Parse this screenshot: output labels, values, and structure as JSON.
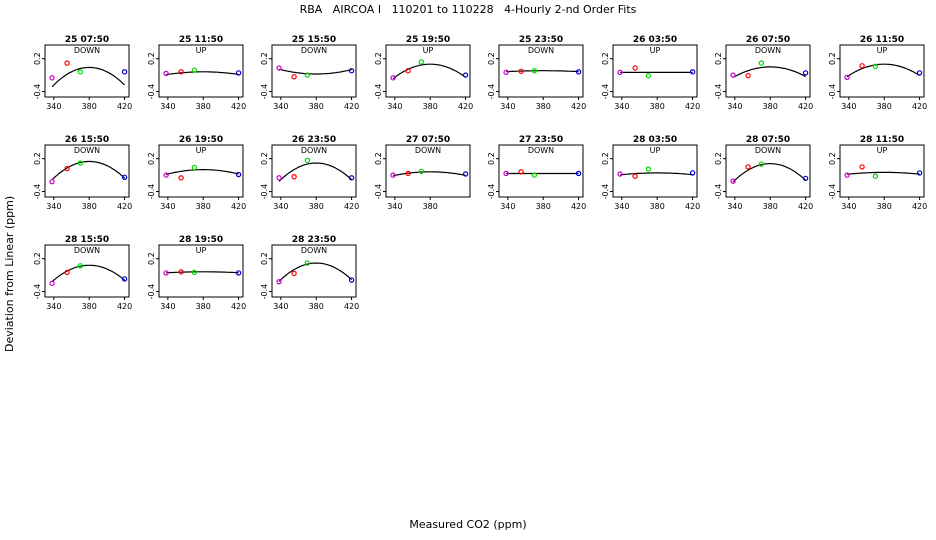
{
  "figure": {
    "title": "RBA   AIRCOA I   110201 to 110228   4-Hourly 2-nd Order Fits",
    "xlabel": "Measured CO2 (ppm)",
    "ylabel": "Deviation from Linear (ppm)"
  },
  "colors": {
    "curve": "#000000",
    "std1": "#cc00cc",
    "std2": "#ff0000",
    "std3": "#00dd00",
    "std4": "#0000cc"
  },
  "chart_data": {
    "type": "scatter",
    "xlim": [
      330,
      425
    ],
    "ylim": [
      -0.5,
      0.45
    ],
    "xticks": [
      "340",
      "380",
      "420"
    ],
    "yticks": [
      "0.2",
      "-0.4"
    ],
    "panels": [
      {
        "title": "25 07:50",
        "direction": "DOWN",
        "points": [
          [
            338,
            -0.15
          ],
          [
            355,
            0.12
          ],
          [
            370,
            -0.04
          ],
          [
            420,
            -0.04
          ]
        ],
        "fit": [
          -0.0002,
          0.04
        ],
        "xticks": [
          "340",
          "380",
          "420"
        ]
      },
      {
        "title": "25 11:50",
        "direction": "UP",
        "points": [
          [
            338,
            -0.07
          ],
          [
            355,
            -0.04
          ],
          [
            370,
            -0.01
          ],
          [
            420,
            -0.06
          ]
        ],
        "fit": [
          -3e-05,
          -0.04
        ],
        "xticks": [
          "340",
          "380",
          "420"
        ]
      },
      {
        "title": "25 15:50",
        "direction": "DOWN",
        "points": [
          [
            338,
            0.03
          ],
          [
            355,
            -0.13
          ],
          [
            370,
            -0.1
          ],
          [
            420,
            -0.02
          ]
        ],
        "fit": [
          5e-05,
          -0.08
        ],
        "xticks": [
          "340",
          "380",
          "420"
        ]
      },
      {
        "title": "25 19:50",
        "direction": "UP",
        "points": [
          [
            338,
            -0.15
          ],
          [
            355,
            -0.02
          ],
          [
            370,
            0.14
          ],
          [
            420,
            -0.1
          ]
        ],
        "fit": [
          -0.00015,
          0.1
        ],
        "xticks": [
          "340",
          "380",
          "420"
        ]
      },
      {
        "title": "25 23:50",
        "direction": "DOWN",
        "points": [
          [
            338,
            -0.05
          ],
          [
            355,
            -0.03
          ],
          [
            370,
            -0.02
          ],
          [
            420,
            -0.04
          ]
        ],
        "fit": [
          -1e-05,
          -0.02
        ],
        "xticks": [
          "340",
          "380",
          "420"
        ]
      },
      {
        "title": "26 03:50",
        "direction": "UP",
        "points": [
          [
            338,
            -0.05
          ],
          [
            355,
            0.03
          ],
          [
            370,
            -0.11
          ],
          [
            420,
            -0.04
          ]
        ],
        "fit": [
          0,
          -0.05
        ],
        "xticks": [
          "340",
          "380",
          "420"
        ]
      },
      {
        "title": "26 07:50",
        "direction": "DOWN",
        "points": [
          [
            338,
            -0.1
          ],
          [
            355,
            -0.11
          ],
          [
            370,
            0.12
          ],
          [
            420,
            -0.06
          ]
        ],
        "fit": [
          -0.00011,
          0.05
        ],
        "xticks": [
          "340",
          "380",
          "420"
        ]
      },
      {
        "title": "26 11:50",
        "direction": "UP",
        "points": [
          [
            338,
            -0.14
          ],
          [
            355,
            0.07
          ],
          [
            370,
            0.06
          ],
          [
            420,
            -0.06
          ]
        ],
        "fit": [
          -0.00013,
          0.1
        ],
        "xticks": [
          "340",
          "380",
          "420"
        ]
      },
      {
        "title": "26 15:50",
        "direction": "DOWN",
        "points": [
          [
            338,
            -0.22
          ],
          [
            355,
            0.02
          ],
          [
            370,
            0.12
          ],
          [
            420,
            -0.14
          ]
        ],
        "fit": [
          -0.00019,
          0.15
        ],
        "xticks": [
          "340",
          "380",
          "420"
        ]
      },
      {
        "title": "26 19:50",
        "direction": "UP",
        "points": [
          [
            338,
            -0.1
          ],
          [
            355,
            -0.15
          ],
          [
            370,
            0.04
          ],
          [
            420,
            -0.09
          ]
        ],
        "fit": [
          -5e-05,
          0.0
        ],
        "xticks": [
          "340",
          "380",
          "420"
        ]
      },
      {
        "title": "26 23:50",
        "direction": "DOWN",
        "points": [
          [
            338,
            -0.15
          ],
          [
            355,
            -0.13
          ],
          [
            370,
            0.17
          ],
          [
            420,
            -0.15
          ]
        ],
        "fit": [
          -0.00019,
          0.12
        ],
        "xticks": [
          "340",
          "380",
          "420"
        ]
      },
      {
        "title": "27 07:50",
        "direction": "DOWN",
        "points": [
          [
            338,
            -0.1
          ],
          [
            355,
            -0.07
          ],
          [
            370,
            -0.03
          ],
          [
            420,
            -0.08
          ]
        ],
        "fit": [
          -4e-05,
          -0.04
        ],
        "xticks": [
          "340",
          "380"
        ]
      },
      {
        "title": "27 23:50",
        "direction": "DOWN",
        "points": [
          [
            338,
            -0.07
          ],
          [
            355,
            -0.04
          ],
          [
            370,
            -0.1
          ],
          [
            420,
            -0.07
          ]
        ],
        "fit": [
          0,
          -0.07
        ],
        "xticks": [
          "340",
          "380",
          "420"
        ]
      },
      {
        "title": "28 03:50",
        "direction": "UP",
        "points": [
          [
            338,
            -0.08
          ],
          [
            355,
            -0.12
          ],
          [
            370,
            0.01
          ],
          [
            420,
            -0.06
          ]
        ],
        "fit": [
          -2e-05,
          -0.06
        ],
        "xticks": [
          "340",
          "380",
          "420"
        ]
      },
      {
        "title": "28 07:50",
        "direction": "DOWN",
        "points": [
          [
            338,
            -0.21
          ],
          [
            355,
            0.05
          ],
          [
            370,
            0.1
          ],
          [
            420,
            -0.16
          ]
        ],
        "fit": [
          -0.00019,
          0.11
        ],
        "xticks": [
          "340",
          "380",
          "420"
        ]
      },
      {
        "title": "28 11:50",
        "direction": "UP",
        "points": [
          [
            338,
            -0.1
          ],
          [
            355,
            0.05
          ],
          [
            370,
            -0.12
          ],
          [
            420,
            -0.06
          ]
        ],
        "fit": [
          -2e-05,
          -0.05
        ],
        "xticks": [
          "340",
          "380",
          "420"
        ]
      },
      {
        "title": "28 15:50",
        "direction": "DOWN",
        "points": [
          [
            338,
            -0.25
          ],
          [
            355,
            -0.05
          ],
          [
            370,
            0.07
          ],
          [
            420,
            -0.17
          ]
        ],
        "fit": [
          -0.00017,
          0.08
        ],
        "xticks": [
          "340",
          "380",
          "420"
        ]
      },
      {
        "title": "28 19:50",
        "direction": "UP",
        "points": [
          [
            338,
            -0.06
          ],
          [
            355,
            -0.04
          ],
          [
            370,
            -0.05
          ],
          [
            420,
            -0.06
          ]
        ],
        "fit": [
          -1e-05,
          -0.04
        ],
        "xticks": [
          "340",
          "380",
          "420"
        ]
      },
      {
        "title": "28 23:50",
        "direction": "DOWN",
        "points": [
          [
            338,
            -0.22
          ],
          [
            355,
            -0.07
          ],
          [
            370,
            0.12
          ],
          [
            420,
            -0.19
          ]
        ],
        "fit": [
          -0.00019,
          0.12
        ],
        "xticks": [
          "340",
          "380",
          "420"
        ]
      }
    ]
  }
}
